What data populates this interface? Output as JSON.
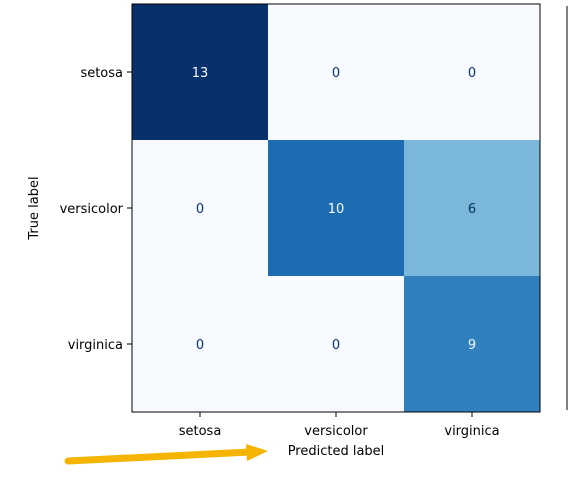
{
  "chart_data": {
    "type": "heatmap",
    "title": "",
    "xlabel": "Predicted label",
    "ylabel": "True label",
    "x_categories": [
      "setosa",
      "versicolor",
      "virginica"
    ],
    "y_categories": [
      "setosa",
      "versicolor",
      "virginica"
    ],
    "values": [
      [
        13,
        0,
        0
      ],
      [
        0,
        10,
        6
      ],
      [
        0,
        0,
        9
      ]
    ],
    "colormap": "Blues",
    "value_range": [
      0,
      13
    ],
    "grid": false,
    "annotation": "arrow-pointing-at-predicted-label",
    "colors": {
      "arrow": "#F5B400",
      "text_light": "#f7fbff",
      "text_dark": "#08306b"
    }
  }
}
